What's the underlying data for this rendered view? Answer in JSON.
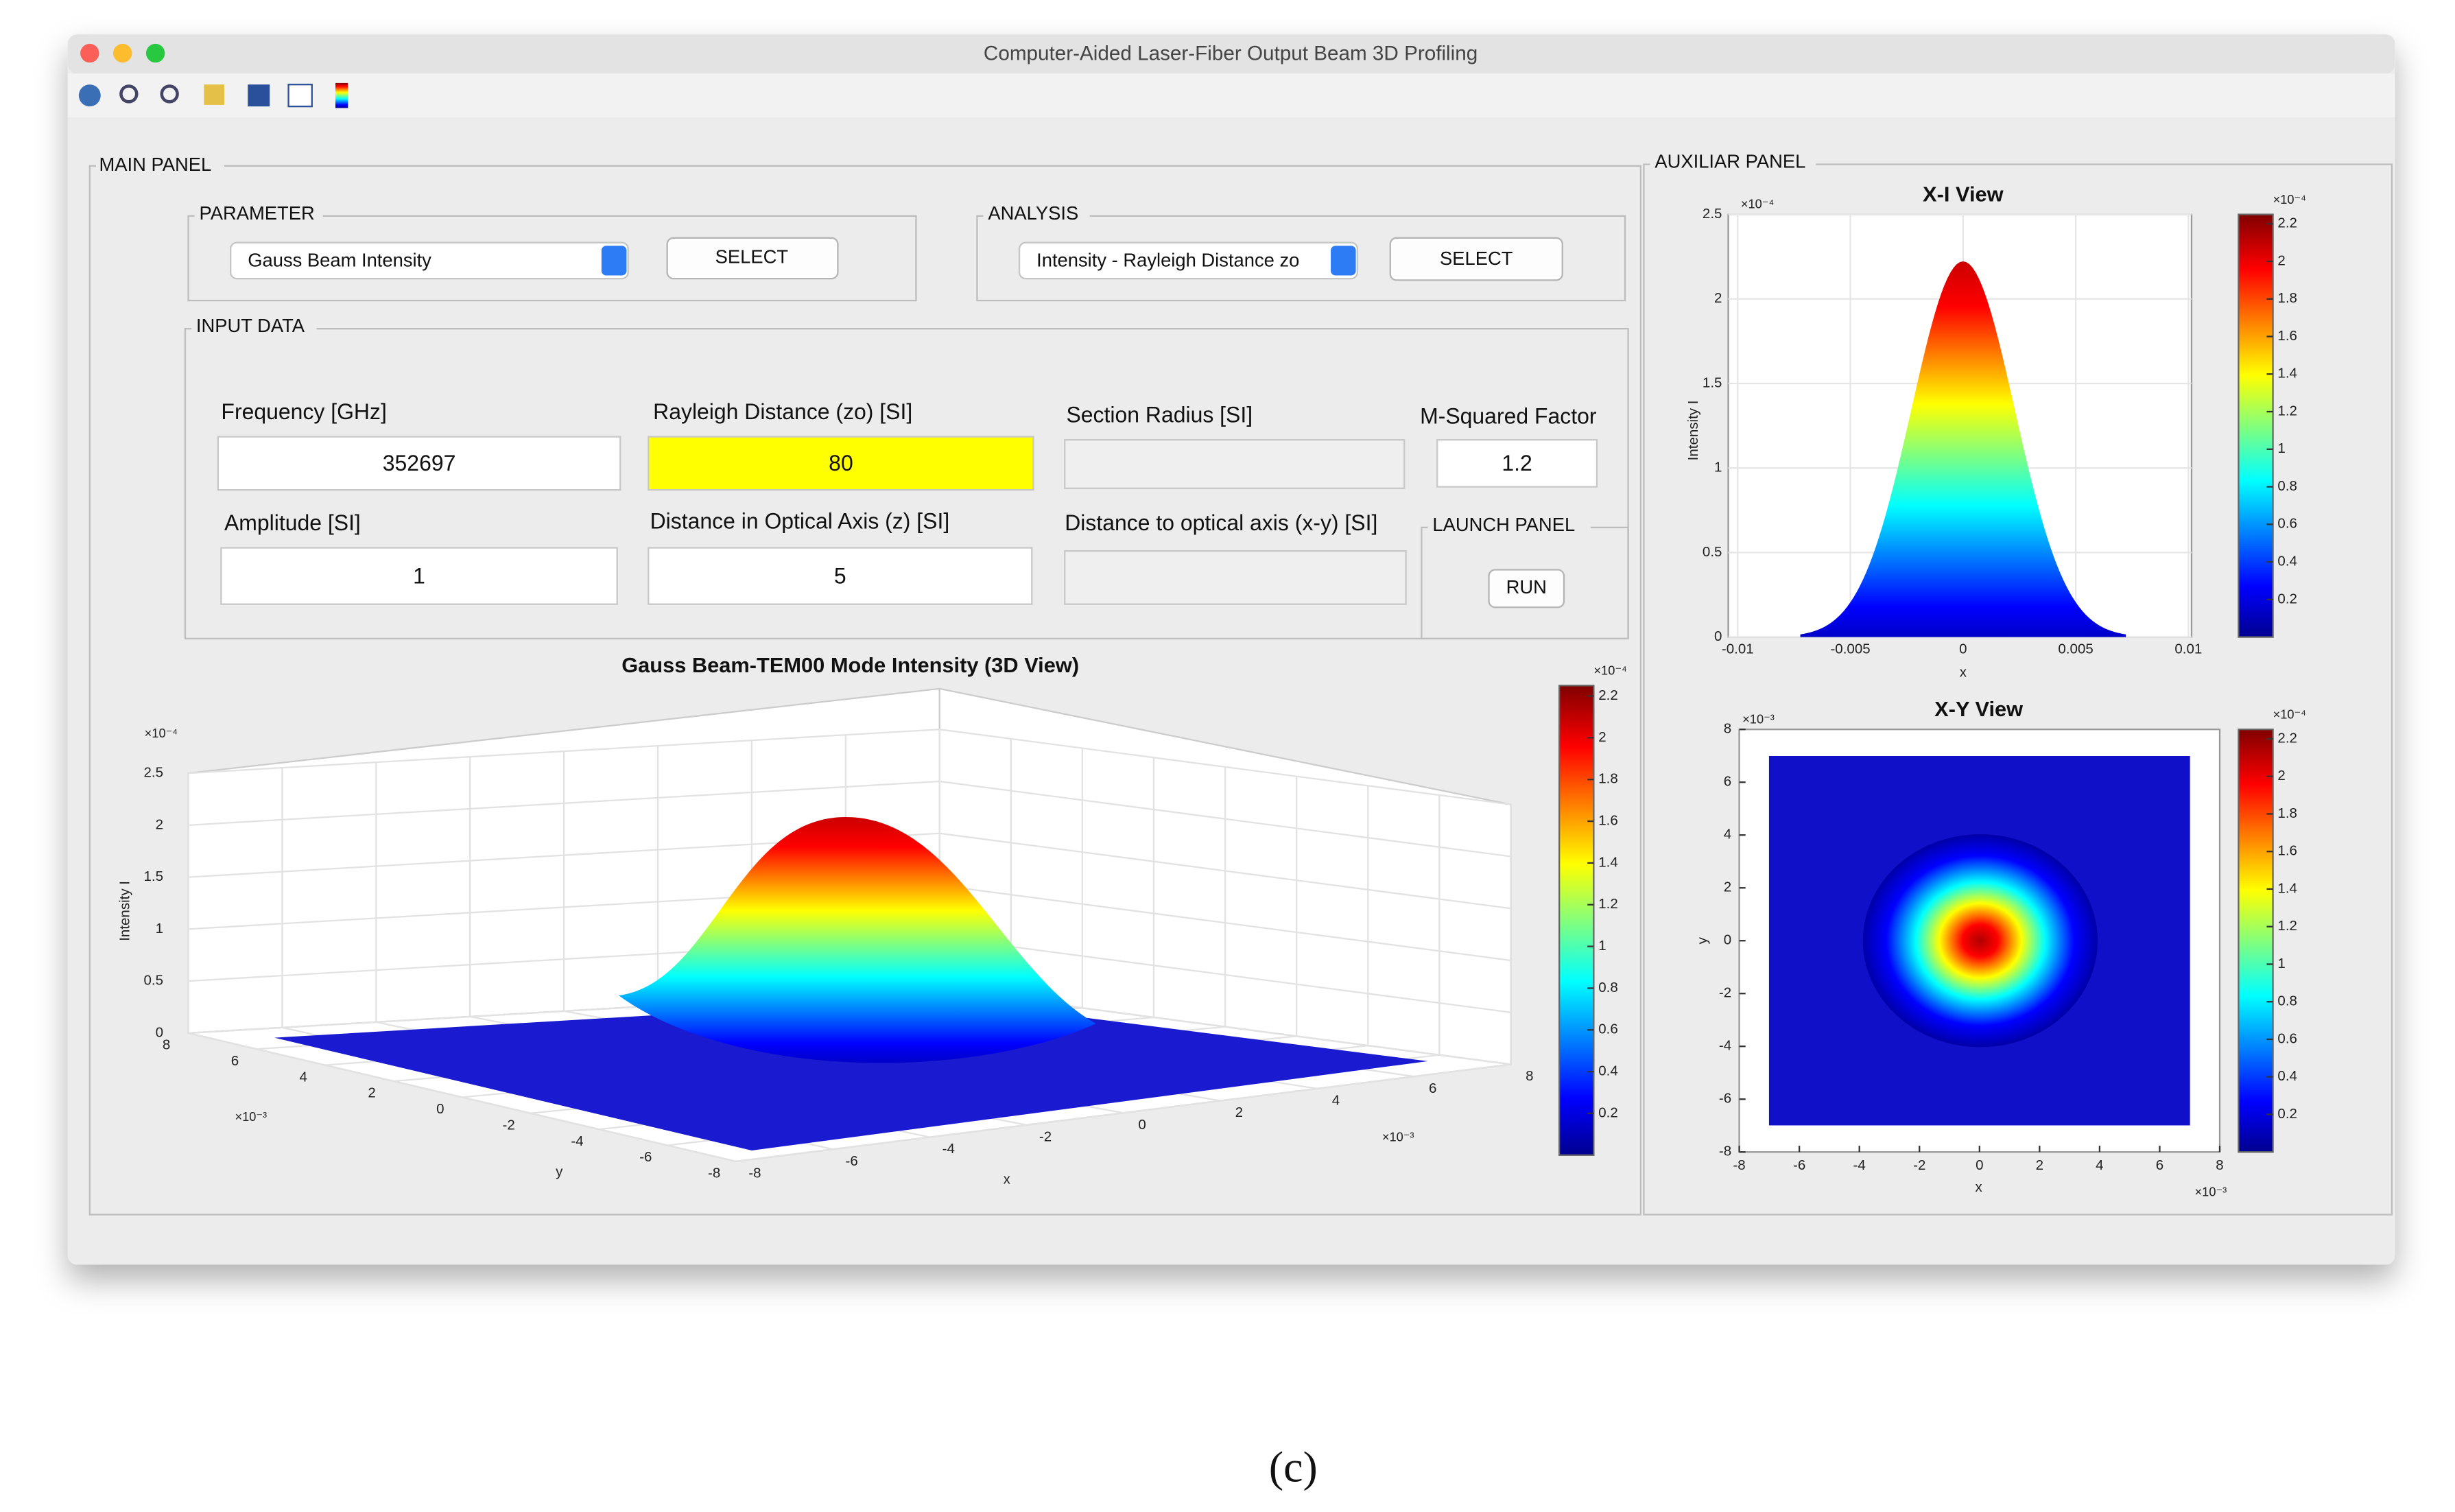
{
  "window": {
    "title": "Computer-Aided Laser-Fiber Output Beam 3D Profiling"
  },
  "main_panel": {
    "title": "MAIN PANEL",
    "parameter": {
      "title": "PARAMETER",
      "dropdown": "Gauss Beam Intensity",
      "button": "SELECT"
    },
    "analysis": {
      "title": "ANALYSIS",
      "dropdown": "Intensity - Rayleigh Distance zo",
      "button": "SELECT"
    },
    "input_data": {
      "title": "INPUT DATA",
      "fields": [
        {
          "label": "Frequency [GHz]",
          "value": 352697
        },
        {
          "label": "Rayleigh Distance (zo) [SI]",
          "value": 80
        },
        {
          "label": "Section Radius [SI]"
        },
        {
          "label": "M-Squared Factor",
          "value": 1.2
        },
        {
          "label": "Amplitude [SI]",
          "value": 1
        },
        {
          "label": "Distance in Optical Axis (z) [SI]",
          "value": 5
        },
        {
          "label": "Distance to optical axis (x-y) [SI]"
        }
      ]
    },
    "launch_panel": {
      "title": "LAUNCH PANEL",
      "button": "RUN"
    },
    "plot_3d": {
      "title": "Gauss Beam-TEM00 Mode Intensity (3D View)",
      "zlabel": "Intensity I",
      "zexp": "×10⁻⁴",
      "zlim": [
        0,
        2.5
      ],
      "zticks": [
        0,
        0.5,
        1,
        1.5,
        2,
        2.5
      ],
      "ylabel": "y",
      "yexp": "×10⁻³",
      "ylim": [
        -8,
        8
      ],
      "yticks": [
        8,
        6,
        4,
        2,
        0,
        -2,
        -4,
        -6,
        -8
      ],
      "xlabel": "x",
      "xexp": "×10⁻³",
      "xlim": [
        -8,
        8
      ],
      "xticks": [
        -8,
        -6,
        -4,
        -2,
        0,
        2,
        4,
        6,
        8
      ],
      "colorbar": {
        "exp": "×10⁻⁴",
        "lim": [
          0,
          2.25
        ],
        "ticks": [
          0.2,
          0.4,
          0.6,
          0.8,
          1,
          1.2,
          1.4,
          1.6,
          1.8,
          2,
          2.2
        ]
      }
    }
  },
  "auxiliar_panel": {
    "title": "AUXILIAR PANEL",
    "xi_view": {
      "title": "X-I View",
      "xlabel": "x",
      "ylabel": "Intensity I",
      "yexp": "×10⁻⁴",
      "xlim": [
        -0.01,
        0.01
      ],
      "xticks": [
        -0.01,
        -0.005,
        0,
        0.005,
        0.01
      ],
      "ylim": [
        0,
        2.5
      ],
      "yticks": [
        0,
        0.5,
        1,
        1.5,
        2,
        2.5
      ],
      "colorbar": {
        "exp": "×10⁻⁴",
        "lim": [
          0,
          2.25
        ],
        "ticks": [
          0.2,
          0.4,
          0.6,
          0.8,
          1,
          1.2,
          1.4,
          1.6,
          1.8,
          2,
          2.2
        ]
      }
    },
    "xy_view": {
      "title": "X-Y View",
      "xlabel": "x",
      "ylabel": "y",
      "xexp": "×10⁻³",
      "yexp": "×10⁻³",
      "xlim": [
        -8,
        8
      ],
      "xticks": [
        -8,
        -6,
        -4,
        -2,
        0,
        2,
        4,
        6,
        8
      ],
      "ylim": [
        -8,
        8
      ],
      "yticks": [
        -8,
        -6,
        -4,
        -2,
        0,
        2,
        4,
        6,
        8
      ],
      "colorbar": {
        "exp": "×10⁻⁴",
        "lim": [
          0,
          2.25
        ],
        "ticks": [
          0.2,
          0.4,
          0.6,
          0.8,
          1,
          1.2,
          1.4,
          1.6,
          1.8,
          2,
          2.2
        ]
      }
    }
  },
  "caption": "(c)"
}
